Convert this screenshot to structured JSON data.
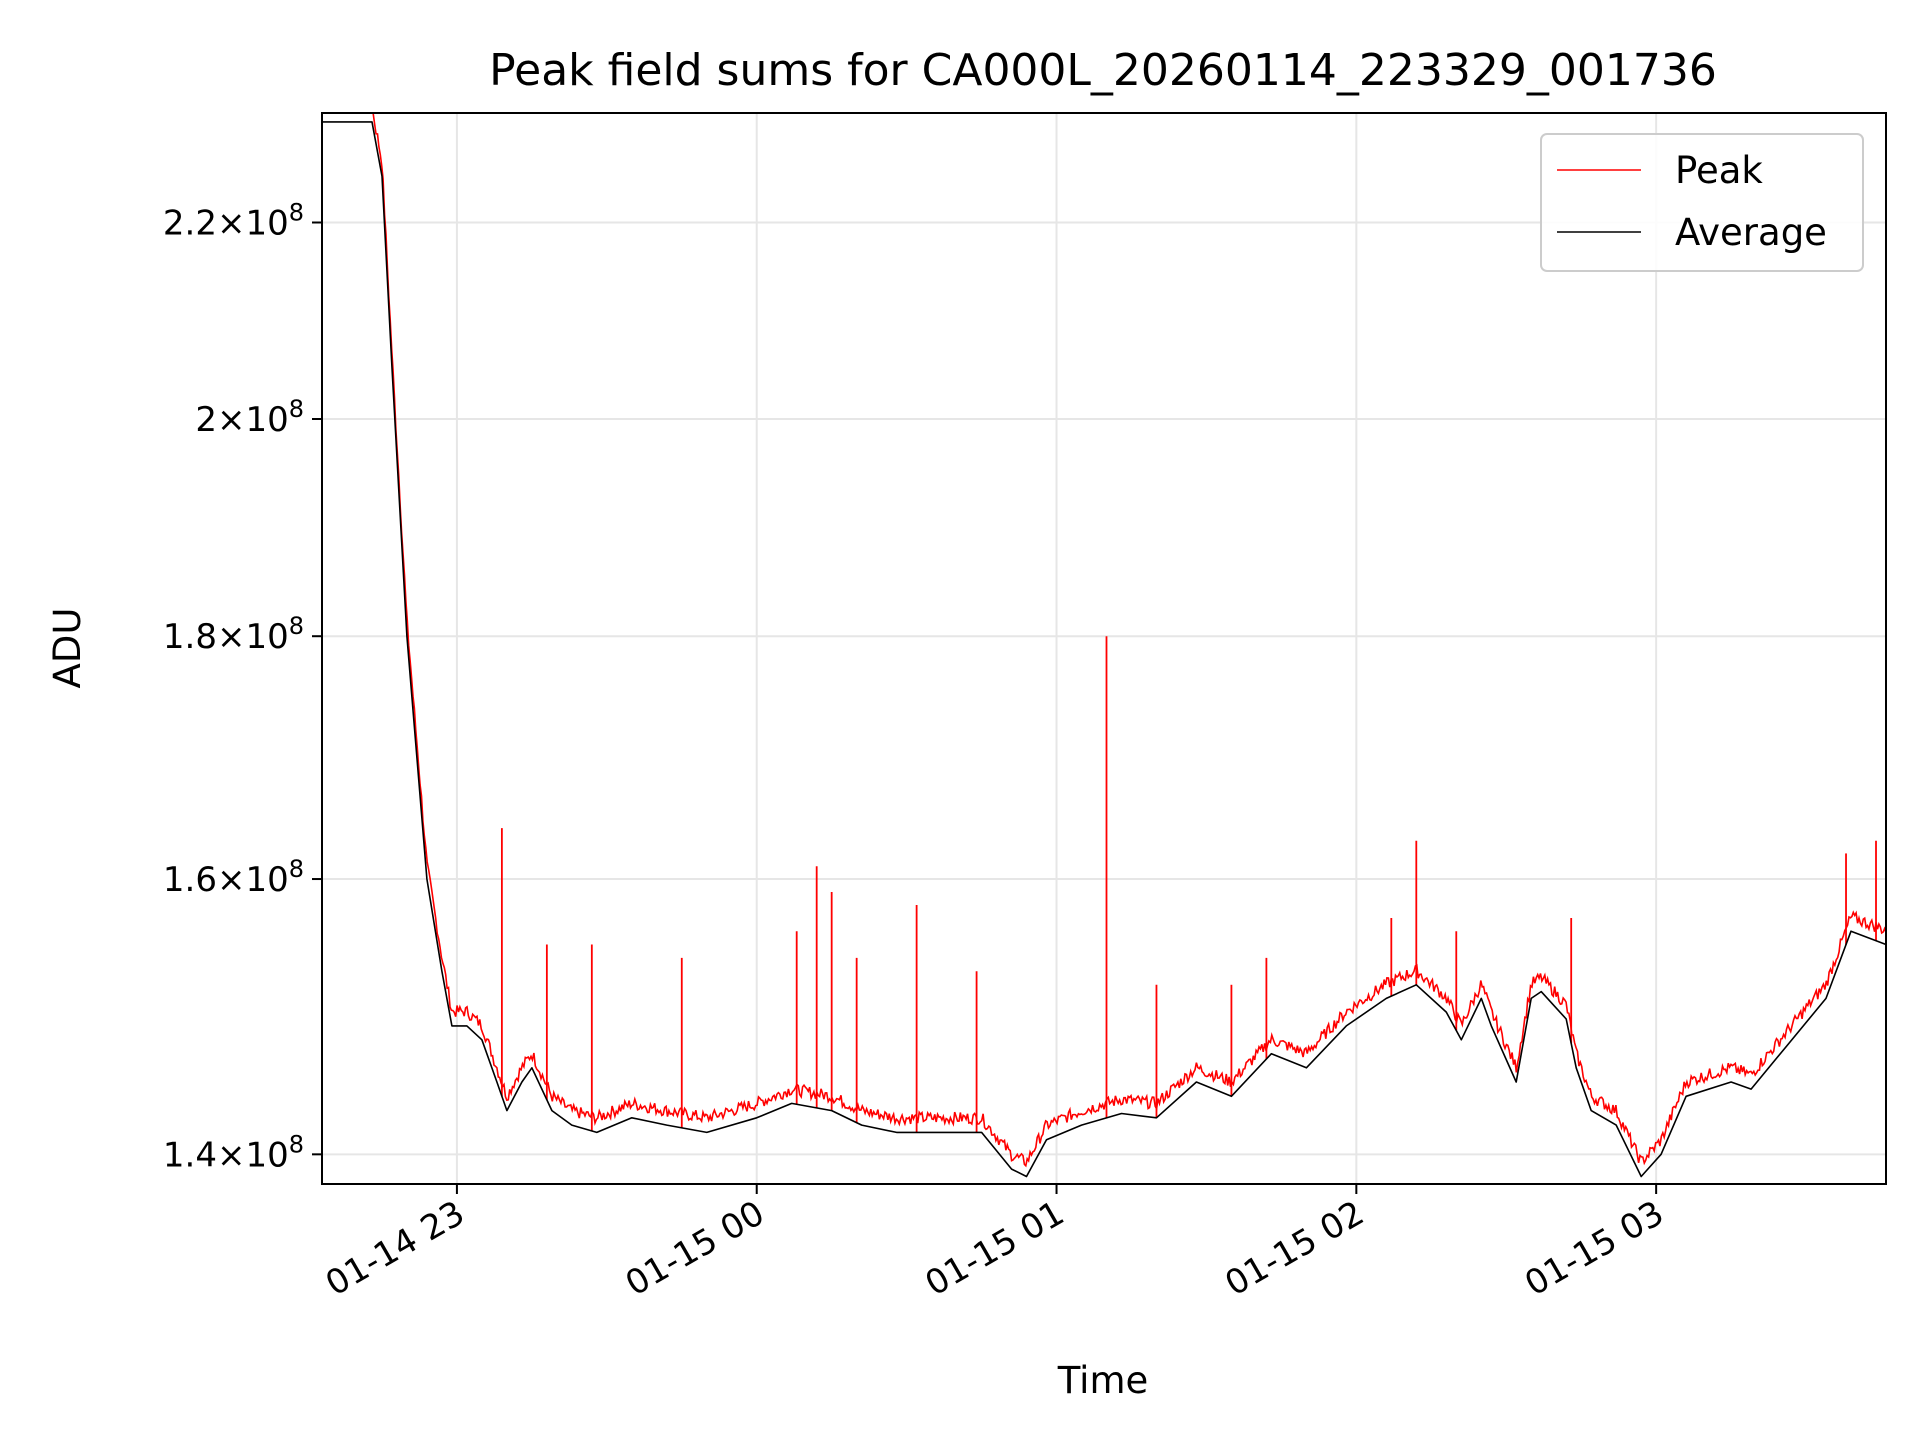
{
  "chart_data": {
    "type": "line",
    "title": "Peak field sums for CA000L_20260114_223329_001736",
    "xlabel": "Time",
    "ylabel": "ADU",
    "yscale": "log",
    "grid": true,
    "legend_position": "top-right",
    "x_unit": "hours since 2026-01-14 22:00",
    "xlim": [
      "2026-01-14 22:33",
      "2026-01-15 03:46"
    ],
    "ylim": [
      138000000,
      232000000
    ],
    "x_ticks": [
      {
        "value": "2026-01-14 23:00",
        "label": "01-14 23"
      },
      {
        "value": "2026-01-15 00:00",
        "label": "01-15 00"
      },
      {
        "value": "2026-01-15 01:00",
        "label": "01-15 01"
      },
      {
        "value": "2026-01-15 02:00",
        "label": "01-15 02"
      },
      {
        "value": "2026-01-15 03:00",
        "label": "01-15 03"
      }
    ],
    "y_ticks": [
      {
        "value": 140000000,
        "mantissa": "1.4",
        "exponent": "8"
      },
      {
        "value": 160000000,
        "mantissa": "1.6",
        "exponent": "8"
      },
      {
        "value": 180000000,
        "mantissa": "1.8",
        "exponent": "8"
      },
      {
        "value": 200000000,
        "mantissa": "2",
        "exponent": "8"
      },
      {
        "value": 220000000,
        "mantissa": "2.2",
        "exponent": "8"
      }
    ],
    "series": [
      {
        "name": "Peak",
        "color": "#ff0000",
        "spikes_x": [
          "2026-01-14 23:09",
          "2026-01-14 23:18",
          "2026-01-14 23:27",
          "2026-01-14 23:45",
          "2026-01-15 00:08",
          "2026-01-15 00:12",
          "2026-01-15 00:15",
          "2026-01-15 00:20",
          "2026-01-15 00:32",
          "2026-01-15 00:44",
          "2026-01-15 01:10",
          "2026-01-15 01:20",
          "2026-01-15 01:35",
          "2026-01-15 01:42",
          "2026-01-15 02:07",
          "2026-01-15 02:12",
          "2026-01-15 02:20",
          "2026-01-15 02:43",
          "2026-01-15 03:38",
          "2026-01-15 03:44"
        ],
        "spikes_y": [
          164000000,
          155000000,
          155000000,
          154000000,
          156000000,
          161000000,
          159000000,
          154000000,
          158000000,
          153000000,
          180000000,
          152000000,
          152000000,
          154000000,
          157000000,
          163000000,
          156000000,
          157000000,
          162000000,
          163000000
        ]
      },
      {
        "name": "Average",
        "color": "#000000",
        "x": [
          "2026-01-14 22:33",
          "2026-01-14 22:43",
          "2026-01-14 22:45",
          "2026-01-14 22:47",
          "2026-01-14 22:50",
          "2026-01-14 22:54",
          "2026-01-14 22:57",
          "2026-01-14 22:59",
          "2026-01-14 23:02",
          "2026-01-14 23:05",
          "2026-01-14 23:08",
          "2026-01-14 23:10",
          "2026-01-14 23:13",
          "2026-01-14 23:15",
          "2026-01-14 23:19",
          "2026-01-14 23:23",
          "2026-01-14 23:28",
          "2026-01-14 23:35",
          "2026-01-14 23:42",
          "2026-01-14 23:50",
          "2026-01-15 00:00",
          "2026-01-15 00:07",
          "2026-01-15 00:15",
          "2026-01-15 00:21",
          "2026-01-15 00:28",
          "2026-01-15 00:38",
          "2026-01-15 00:45",
          "2026-01-15 00:51",
          "2026-01-15 00:54",
          "2026-01-15 00:58",
          "2026-01-15 01:05",
          "2026-01-15 01:13",
          "2026-01-15 01:20",
          "2026-01-15 01:28",
          "2026-01-15 01:35",
          "2026-01-15 01:43",
          "2026-01-15 01:50",
          "2026-01-15 01:58",
          "2026-01-15 02:06",
          "2026-01-15 02:12",
          "2026-01-15 02:18",
          "2026-01-15 02:21",
          "2026-01-15 02:25",
          "2026-01-15 02:27",
          "2026-01-15 02:32",
          "2026-01-15 02:35",
          "2026-01-15 02:37",
          "2026-01-15 02:42",
          "2026-01-15 02:44",
          "2026-01-15 02:47",
          "2026-01-15 02:52",
          "2026-01-15 02:57",
          "2026-01-15 03:01",
          "2026-01-15 03:06",
          "2026-01-15 03:15",
          "2026-01-15 03:19",
          "2026-01-15 03:26",
          "2026-01-15 03:34",
          "2026-01-15 03:39",
          "2026-01-15 03:46"
        ],
        "y": [
          231000000,
          231000000,
          225000000,
          205000000,
          180000000,
          160000000,
          153000000,
          149000000,
          149000000,
          148000000,
          145000000,
          143000000,
          145000000,
          146000000,
          143000000,
          142000000,
          141500000,
          142500000,
          142000000,
          141500000,
          142500000,
          143500000,
          143000000,
          142000000,
          141500000,
          141500000,
          141500000,
          139000000,
          138500000,
          141000000,
          142000000,
          142800000,
          142500000,
          145000000,
          144000000,
          147000000,
          146000000,
          149000000,
          151000000,
          152000000,
          150000000,
          148000000,
          151000000,
          149000000,
          145000000,
          151000000,
          151500000,
          149500000,
          146000000,
          143000000,
          142000000,
          138500000,
          140000000,
          144000000,
          145000000,
          144500000,
          147500000,
          151000000,
          156000000,
          155000000
        ]
      }
    ]
  }
}
